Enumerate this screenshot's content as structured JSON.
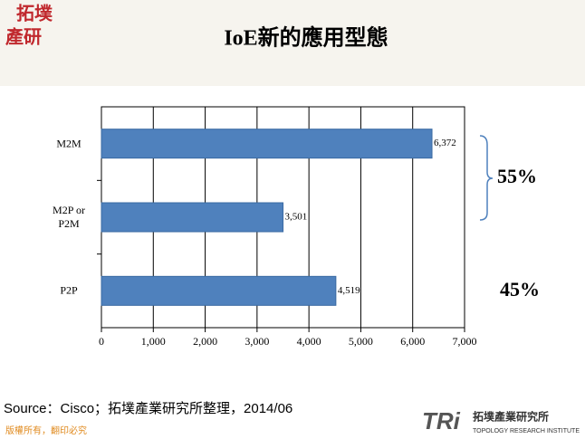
{
  "chart_data": {
    "type": "hbar",
    "title": "IoE新的應用型態",
    "categories": [
      "M2M",
      "M2P or P2M",
      "P2P"
    ],
    "values": [
      6372,
      3501,
      4519
    ],
    "value_labels": [
      "6,372",
      "3,501",
      "4,519"
    ],
    "color": "#4f81bd",
    "xlim": [
      0,
      7000
    ],
    "xticks": [
      0,
      {
        "value": 1000,
        "label": "1,000"
      },
      {
        "value": 2000,
        "label": "2,000"
      },
      {
        "value": 3000,
        "label": "3,000"
      },
      {
        "value": 4000,
        "label": "4,000"
      },
      {
        "value": 5000,
        "label": "5,000"
      },
      {
        "value": 6000,
        "label": "6,000"
      },
      {
        "value": 7000,
        "label": "7,000"
      }
    ],
    "grid": true,
    "annotations": [
      "55%",
      "45%"
    ]
  },
  "logo": [
    "拓墣",
    "產研"
  ],
  "source": "Source：Cisco；拓墣產業研究所整理，2014/06",
  "copyright": "版權所有，翻印必究",
  "brand": {
    "mark": "TRi",
    "name": "拓墣產業研究所",
    "sub": "TOPOLOGY RESEARCH INSTITUTE"
  }
}
